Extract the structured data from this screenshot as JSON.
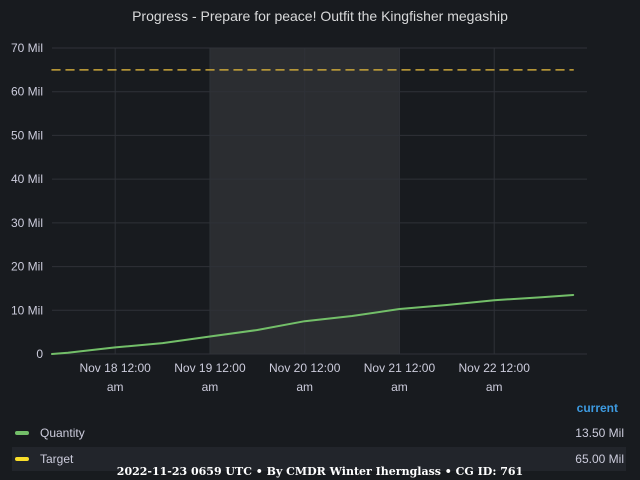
{
  "title": "Progress - Prepare for peace! Outfit the Kingfisher megaship",
  "footer": "2022-11-23 0659 UTC • By CMDR Winter Iherngl­ass • CG ID: 761",
  "legend": {
    "header": "current",
    "items": [
      {
        "name": "Quantity",
        "value": "13.50 Mil",
        "color": "#73bf69"
      },
      {
        "name": "Target",
        "value": "65.00 Mil",
        "color": "#fade2a"
      }
    ]
  },
  "colors": {
    "background": "#181b1f",
    "grid": "#2f3238",
    "highlight_band": "#2b2d31",
    "quantity": "#73bf69",
    "target": "#c9a53a"
  },
  "chart_data": {
    "type": "line",
    "title": "Progress - Prepare for peace! Outfit the Kingfisher megaship",
    "ylim": [
      0,
      70
    ],
    "y_ticks": [
      0,
      10,
      20,
      30,
      40,
      50,
      60,
      70
    ],
    "y_tick_labels": [
      "0",
      "10 Mil",
      "20 Mil",
      "30 Mil",
      "40 Mil",
      "50 Mil",
      "60 Mil",
      "70 Mil"
    ],
    "xlim": [
      "2022-11-17 08:00",
      "2022-11-22 23:30"
    ],
    "x_ticks": [
      "2022-11-18 00:00",
      "2022-11-19 00:00",
      "2022-11-20 00:00",
      "2022-11-21 00:00",
      "2022-11-22 00:00"
    ],
    "x_tick_labels": [
      [
        "Nov 18 12:00",
        "am"
      ],
      [
        "Nov 19 12:00",
        "am"
      ],
      [
        "Nov 20 12:00",
        "am"
      ],
      [
        "Nov 21 12:00",
        "am"
      ],
      [
        "Nov 22 12:00",
        "am"
      ]
    ],
    "highlight_range": [
      "2022-11-19 00:00",
      "2022-11-21 00:00"
    ],
    "grid": true,
    "legend_position": "bottom",
    "series": [
      {
        "name": "Quantity",
        "style": "solid",
        "x": [
          "2022-11-17 08:00",
          "2022-11-17 12:00",
          "2022-11-18 00:00",
          "2022-11-18 12:00",
          "2022-11-19 00:00",
          "2022-11-19 12:00",
          "2022-11-20 00:00",
          "2022-11-20 12:00",
          "2022-11-21 00:00",
          "2022-11-21 12:00",
          "2022-11-22 00:00",
          "2022-11-22 12:00",
          "2022-11-22 20:00"
        ],
        "values": [
          0,
          0.3,
          1.5,
          2.5,
          4.0,
          5.5,
          7.5,
          8.7,
          10.3,
          11.2,
          12.3,
          13.0,
          13.5
        ]
      },
      {
        "name": "Target",
        "style": "dashed",
        "x": [
          "2022-11-17 08:00",
          "2022-11-22 20:00"
        ],
        "values": [
          65,
          65
        ]
      }
    ]
  }
}
